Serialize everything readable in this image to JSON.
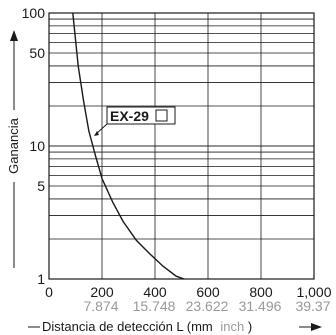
{
  "chart_data": {
    "type": "line",
    "xlabel": "Distancia de detección L (mm",
    "xlabel_sub": "inch",
    "xlabel_close": ")",
    "ylabel": "Ganancia",
    "y_scale": "log",
    "xlim": [
      0,
      1000
    ],
    "ylim": [
      1,
      100
    ],
    "x_ticks": [
      "0",
      "200",
      "400",
      "600",
      "800",
      "1,000"
    ],
    "x_ticks_inch": [
      "7.874",
      "15.748",
      "23.622",
      "31.496",
      "39.37"
    ],
    "y_ticks": [
      "1",
      "5",
      "10",
      "50",
      "100"
    ],
    "grid": true,
    "series": [
      {
        "name": "EX-29",
        "x": [
          90,
          110,
          130,
          150,
          175,
          200,
          240,
          280,
          330,
          380,
          430,
          480,
          510
        ],
        "y": [
          100,
          40,
          22,
          13,
          8.5,
          5.7,
          3.8,
          2.7,
          1.95,
          1.55,
          1.25,
          1.05,
          1.0
        ]
      }
    ]
  }
}
